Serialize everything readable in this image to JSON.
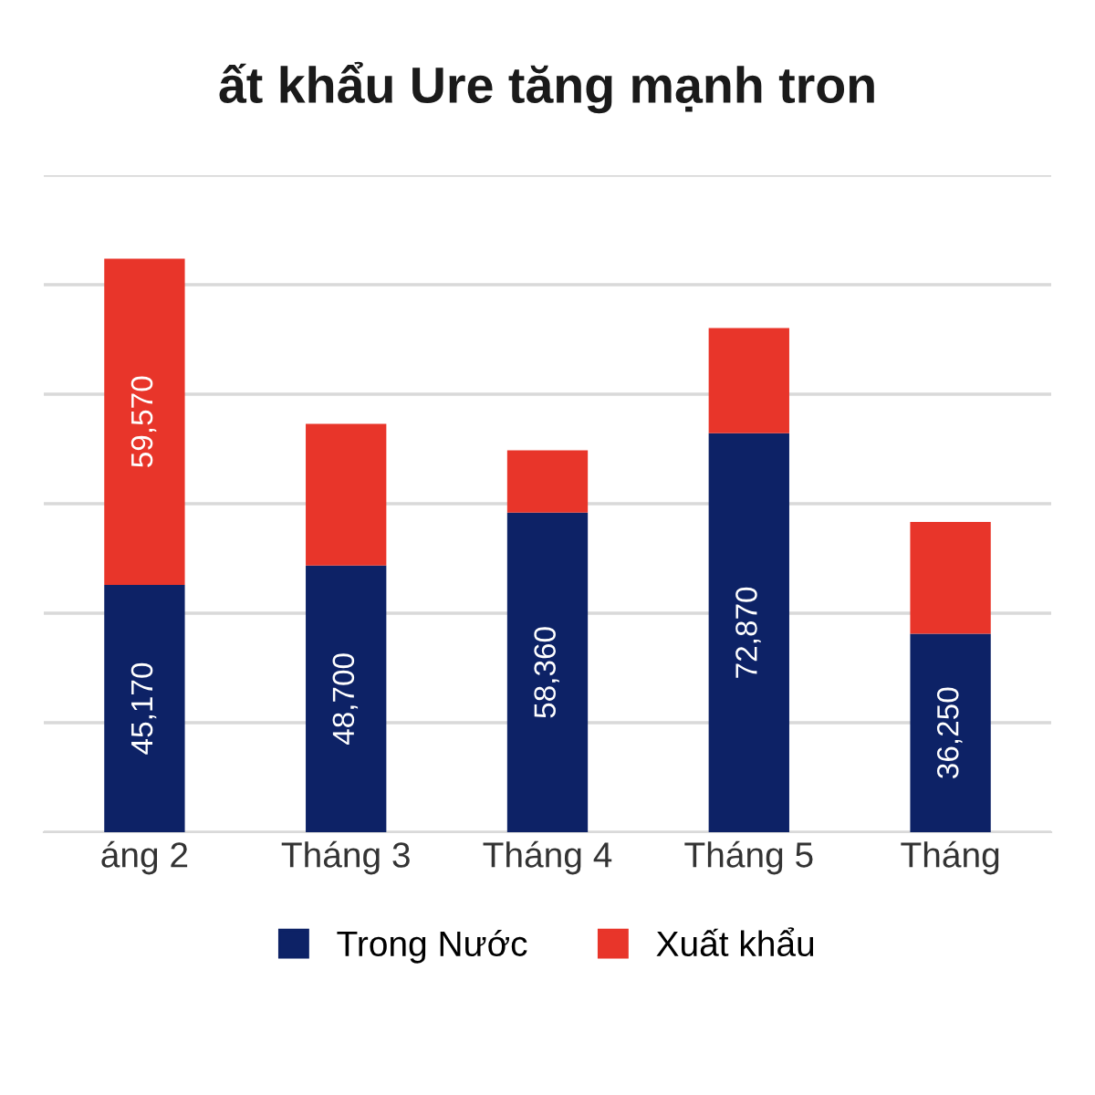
{
  "chart_data": {
    "type": "bar",
    "title": "ất khẩu Ure tăng mạnh tron",
    "categories": [
      "áng 2",
      "Tháng 3",
      "Tháng 4",
      "Tháng 5",
      "Tháng"
    ],
    "stacked": true,
    "series": [
      {
        "name": "Trong Nước",
        "color": "#0d2266",
        "values": [
          45170,
          48700,
          58360,
          72870,
          36250
        ],
        "value_labels": [
          "45,170",
          "48,700",
          "58,360",
          "72,870",
          "36,250"
        ]
      },
      {
        "name": "Xuất khẩu",
        "color": "#e8352a",
        "values": [
          59570,
          25900,
          11400,
          19200,
          20400
        ],
        "value_labels": [
          "59,570",
          null,
          null,
          null,
          null
        ]
      }
    ],
    "ylim": [
      0,
      120000
    ],
    "yticks": [
      {
        "value": 0,
        "label": null
      },
      {
        "value": 20000,
        "label": null
      },
      {
        "value": 40000,
        "label": null
      },
      {
        "value": 60000,
        "label": null
      },
      {
        "value": 80000,
        "label": null
      },
      {
        "value": 100000,
        "label": null
      },
      {
        "value": 120000,
        "label": null
      }
    ],
    "grid": "y",
    "tick_labels": "x",
    "legend": "bottom"
  }
}
